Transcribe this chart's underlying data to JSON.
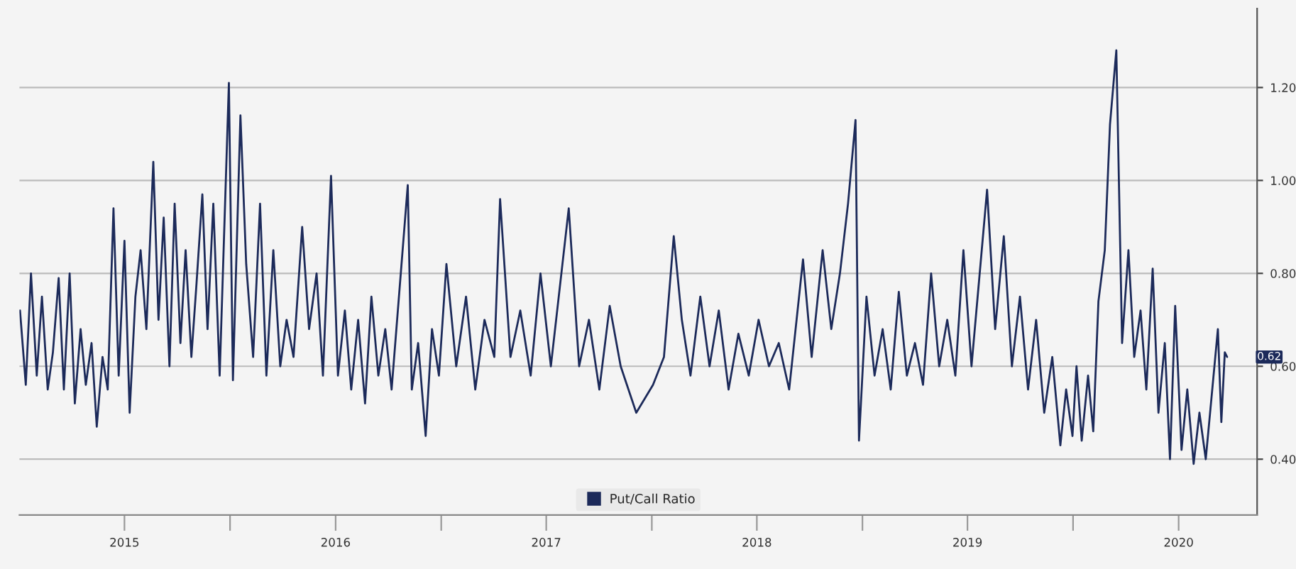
{
  "chart_data": {
    "type": "line",
    "legend": "bottom",
    "grid": "y",
    "line_style": "solid",
    "xlim": [
      "2015-01-01",
      "2020-11-15"
    ],
    "xticks": [
      {
        "value": "2015-07-02",
        "label": "2015"
      },
      {
        "value": "2016-01-01",
        "label": null
      },
      {
        "value": "2016-07-02",
        "label": "2016"
      },
      {
        "value": "2017-01-01",
        "label": null
      },
      {
        "value": "2017-07-02",
        "label": "2017"
      },
      {
        "value": "2018-01-01",
        "label": null
      },
      {
        "value": "2018-07-02",
        "label": "2018"
      },
      {
        "value": "2019-01-01",
        "label": null
      },
      {
        "value": "2019-07-02",
        "label": "2019"
      },
      {
        "value": "2020-01-01",
        "label": null
      },
      {
        "value": "2020-07-02",
        "label": "2020"
      }
    ],
    "ylim": [
      0.28,
      1.37
    ],
    "yticks": [
      {
        "value": 0.4,
        "label": "0.40"
      },
      {
        "value": 0.6,
        "label": "0.60"
      },
      {
        "value": 0.8,
        "label": "0.80"
      },
      {
        "value": 1.0,
        "label": "1.00"
      },
      {
        "value": 1.2,
        "label": "1.20"
      }
    ],
    "annotations": [
      "0.62"
    ],
    "series": [
      {
        "name": "Put/Call Ratio",
        "color": "#1c2a5a",
        "x": [
          "2015-01-02",
          "2015-01-12",
          "2015-01-21",
          "2015-01-31",
          "2015-02-09",
          "2015-02-19",
          "2015-02-28",
          "2015-03-10",
          "2015-03-19",
          "2015-03-29",
          "2015-04-07",
          "2015-04-17",
          "2015-04-26",
          "2015-05-06",
          "2015-05-15",
          "2015-05-25",
          "2015-06-03",
          "2015-06-13",
          "2015-06-22",
          "2015-07-02",
          "2015-07-11",
          "2015-07-21",
          "2015-07-30",
          "2015-08-09",
          "2015-08-21",
          "2015-08-30",
          "2015-09-08",
          "2015-09-18",
          "2015-09-27",
          "2015-10-07",
          "2015-10-16",
          "2015-10-26",
          "2015-11-04",
          "2015-11-14",
          "2015-11-23",
          "2015-12-03",
          "2015-12-14",
          "2015-12-30",
          "2016-01-06",
          "2016-01-19",
          "2016-01-29",
          "2016-02-10",
          "2016-02-22",
          "2016-03-04",
          "2016-03-16",
          "2016-03-28",
          "2016-04-08",
          "2016-04-20",
          "2016-05-05",
          "2016-05-17",
          "2016-05-30",
          "2016-06-10",
          "2016-06-24",
          "2016-07-06",
          "2016-07-18",
          "2016-07-29",
          "2016-08-10",
          "2016-08-22",
          "2016-09-02",
          "2016-09-14",
          "2016-09-26",
          "2016-10-07",
          "2016-11-04",
          "2016-11-11",
          "2016-11-22",
          "2016-12-05",
          "2016-12-16",
          "2016-12-28",
          "2017-01-10",
          "2017-01-27",
          "2017-02-13",
          "2017-03-01",
          "2017-03-17",
          "2017-04-03",
          "2017-04-13",
          "2017-05-01",
          "2017-05-18",
          "2017-06-05",
          "2017-06-22",
          "2017-07-10",
          "2017-08-10",
          "2017-08-28",
          "2017-09-14",
          "2017-10-02",
          "2017-10-20",
          "2017-11-08",
          "2017-12-05",
          "2018-01-03",
          "2018-01-22",
          "2018-02-08",
          "2018-02-22",
          "2018-03-09",
          "2018-03-26",
          "2018-04-11",
          "2018-04-27",
          "2018-05-14",
          "2018-05-31",
          "2018-06-18",
          "2018-07-05",
          "2018-07-23",
          "2018-08-09",
          "2018-08-27",
          "2018-09-20",
          "2018-10-05",
          "2018-10-24",
          "2018-11-08",
          "2018-11-23",
          "2018-12-07",
          "2018-12-20",
          "2018-12-26",
          "2019-01-08",
          "2019-01-22",
          "2019-02-05",
          "2019-02-19",
          "2019-03-05",
          "2019-03-19",
          "2019-04-02",
          "2019-04-16",
          "2019-04-30",
          "2019-05-14",
          "2019-05-28",
          "2019-06-11",
          "2019-06-25",
          "2019-07-09",
          "2019-08-05",
          "2019-08-19",
          "2019-09-03",
          "2019-09-17",
          "2019-10-01",
          "2019-10-15",
          "2019-10-29",
          "2019-11-12",
          "2019-11-26",
          "2019-12-10",
          "2019-12-20",
          "2019-12-31",
          "2020-01-07",
          "2020-01-16",
          "2020-01-27",
          "2020-02-05",
          "2020-02-14",
          "2020-02-25",
          "2020-03-05",
          "2020-03-16",
          "2020-03-26",
          "2020-04-06",
          "2020-04-16",
          "2020-04-27",
          "2020-05-07",
          "2020-05-18",
          "2020-05-28",
          "2020-06-08",
          "2020-06-17",
          "2020-06-26",
          "2020-07-07",
          "2020-07-17",
          "2020-07-28",
          "2020-08-07",
          "2020-08-18",
          "2020-09-08",
          "2020-09-14",
          "2020-09-20",
          "2020-09-24"
        ],
        "values": [
          0.72,
          0.56,
          0.8,
          0.58,
          0.75,
          0.55,
          0.63,
          0.79,
          0.55,
          0.8,
          0.52,
          0.68,
          0.56,
          0.65,
          0.47,
          0.62,
          0.55,
          0.94,
          0.58,
          0.87,
          0.5,
          0.75,
          0.85,
          0.68,
          1.04,
          0.7,
          0.92,
          0.6,
          0.95,
          0.65,
          0.85,
          0.62,
          0.78,
          0.97,
          0.68,
          0.95,
          0.58,
          1.21,
          0.57,
          1.14,
          0.82,
          0.62,
          0.95,
          0.58,
          0.85,
          0.6,
          0.7,
          0.62,
          0.9,
          0.68,
          0.8,
          0.58,
          1.01,
          0.58,
          0.72,
          0.55,
          0.7,
          0.52,
          0.75,
          0.58,
          0.68,
          0.55,
          0.99,
          0.55,
          0.65,
          0.45,
          0.68,
          0.58,
          0.82,
          0.6,
          0.75,
          0.55,
          0.7,
          0.62,
          0.96,
          0.62,
          0.72,
          0.58,
          0.8,
          0.6,
          0.94,
          0.6,
          0.7,
          0.55,
          0.73,
          0.6,
          0.5,
          0.56,
          0.62,
          0.88,
          0.7,
          0.58,
          0.75,
          0.6,
          0.72,
          0.55,
          0.67,
          0.58,
          0.7,
          0.6,
          0.65,
          0.55,
          0.83,
          0.62,
          0.85,
          0.68,
          0.8,
          0.95,
          1.13,
          0.44,
          0.75,
          0.58,
          0.68,
          0.55,
          0.76,
          0.58,
          0.65,
          0.56,
          0.8,
          0.6,
          0.7,
          0.58,
          0.85,
          0.6,
          0.98,
          0.68,
          0.88,
          0.6,
          0.75,
          0.55,
          0.7,
          0.5,
          0.62,
          0.43,
          0.55,
          0.45,
          0.6,
          0.44,
          0.58,
          0.46,
          0.74,
          0.85,
          1.12,
          1.28,
          0.65,
          0.85,
          0.62,
          0.72,
          0.55,
          0.81,
          0.5,
          0.65,
          0.4,
          0.73,
          0.42,
          0.55,
          0.39,
          0.5,
          0.4,
          0.68,
          0.48,
          0.63,
          0.62
        ]
      }
    ]
  }
}
